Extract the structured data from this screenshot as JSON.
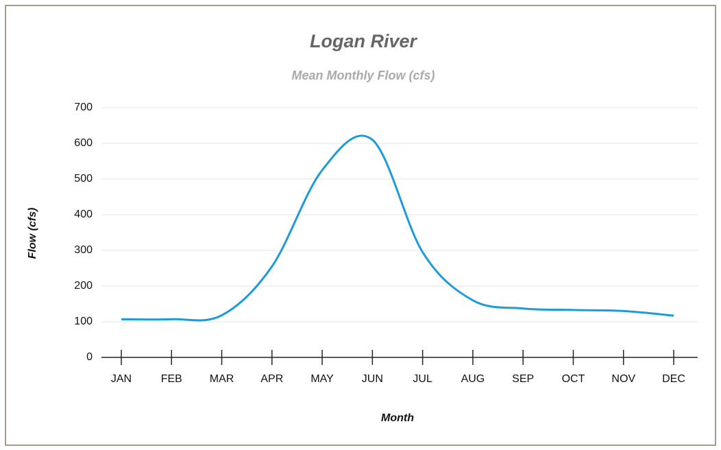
{
  "chart_data": {
    "type": "line",
    "title": "Logan River",
    "subtitle": "Mean Monthly Flow (cfs)",
    "x_label": "Month",
    "y_label": "Flow (cfs)",
    "categories": [
      "JAN",
      "FEB",
      "MAR",
      "APR",
      "MAY",
      "JUN",
      "JUL",
      "AUG",
      "SEP",
      "OCT",
      "NOV",
      "DEC"
    ],
    "series": [
      {
        "name": "Flow",
        "color": "#1f9ad8",
        "values": [
          107,
          107,
          118,
          255,
          525,
          610,
          295,
          160,
          137,
          133,
          130,
          117
        ]
      }
    ],
    "ylim": [
      0,
      700
    ],
    "yticks": [
      0,
      100,
      200,
      300,
      400,
      500,
      600,
      700
    ],
    "grid": true
  }
}
